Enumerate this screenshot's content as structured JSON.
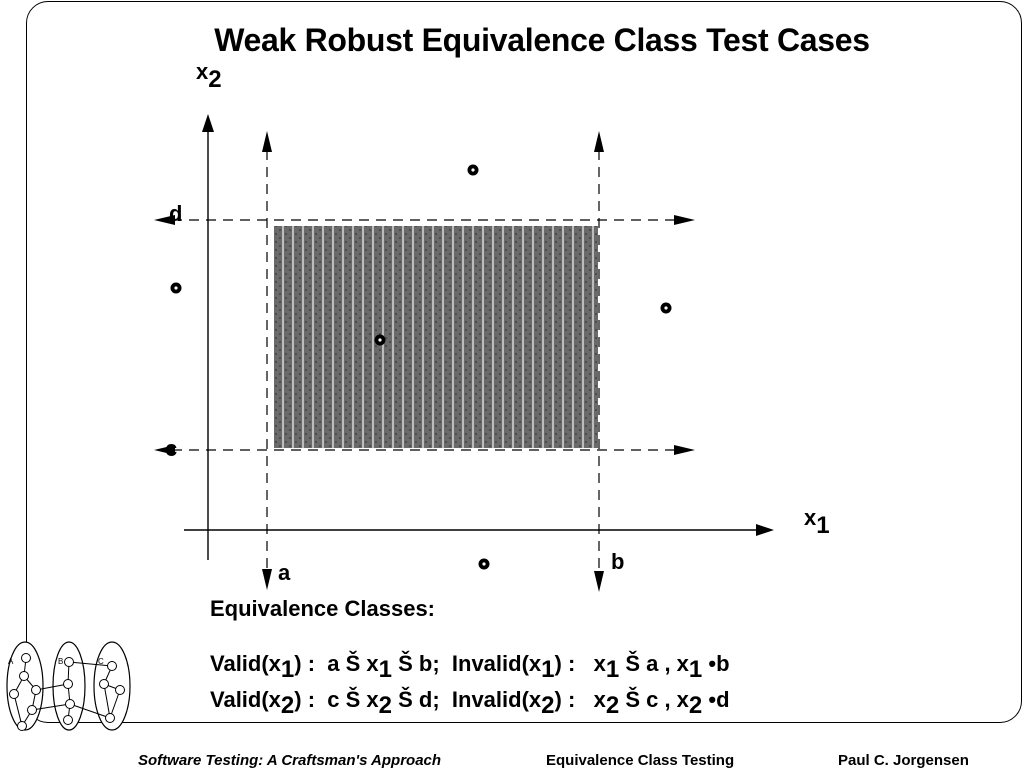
{
  "slide": {
    "title": "Weak Robust Equivalence Class Test Cases"
  },
  "axes": {
    "x_label": "x",
    "x_sub": "1",
    "y_label": "x",
    "y_sub": "2"
  },
  "bounds": {
    "a": "a",
    "b": "b",
    "c": "c",
    "d": "d"
  },
  "equivalence": {
    "heading": "Equivalence Classes:",
    "row1": {
      "t1": "Valid(x",
      "s1": "1",
      "t2": ") :  a Š x",
      "s2": "1",
      "t3": " Š b;  Invalid(x",
      "s3": "1",
      "t4": ") :   x",
      "s4": "1",
      "t5": " Š a , x",
      "s5": "1",
      "t6": " •b"
    },
    "row2": {
      "t1": "Valid(x",
      "s1": "2",
      "t2": ") :  c Š x",
      "s2": "2",
      "t3": " Š d;  Invalid(x",
      "s3": "2",
      "t4": ") :   x",
      "s4": "2",
      "t5": " Š c , x",
      "s5": "2",
      "t6": " •d"
    }
  },
  "footer": {
    "book": "Software Testing:  A Craftsman's Approach",
    "topic": "Equivalence Class Testing",
    "author": "Paul C. Jorgensen"
  },
  "logo": {
    "letters": [
      "A",
      "B",
      "C"
    ]
  },
  "colors": {
    "region_fill": "#555555",
    "ink": "#000000"
  }
}
